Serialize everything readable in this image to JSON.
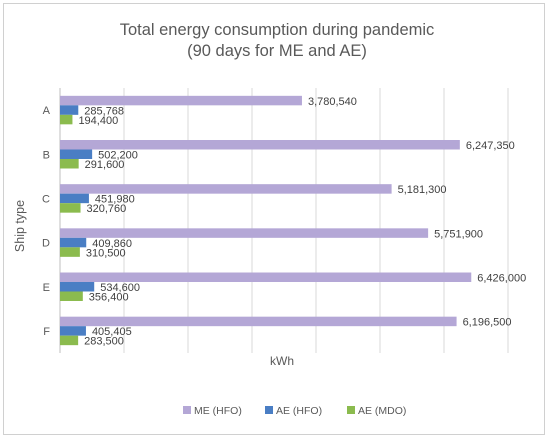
{
  "chart_data": {
    "type": "bar",
    "orientation": "horizontal",
    "title_line1": "Total energy consumption during pandemic",
    "title_line2": "(90 days for ME and AE)",
    "xlabel": "kWh",
    "ylabel": "Ship type",
    "categories": [
      "A",
      "B",
      "C",
      "D",
      "E",
      "F"
    ],
    "series": [
      {
        "name": "ME (HFO)",
        "color": "#b4a7d6",
        "values": [
          3780540,
          6247350,
          5181300,
          5751900,
          6426000,
          6196500
        ],
        "labels": [
          "3,780,540",
          "6,247,350",
          "5,181,300",
          "5,751,900",
          "6,426,000",
          "6,196,500"
        ]
      },
      {
        "name": "AE (HFO)",
        "color": "#4a7ec4",
        "values": [
          285768,
          502200,
          451980,
          409860,
          534600,
          405405
        ],
        "labels": [
          "285,768",
          "502,200",
          "451,980",
          "409,860",
          "534,600",
          "405,405"
        ]
      },
      {
        "name": "AE (MDO)",
        "color": "#8bbb4e",
        "values": [
          194400,
          291600,
          320760,
          310500,
          356400,
          283500
        ],
        "labels": [
          "194,400",
          "291,600",
          "320,760",
          "310,500",
          "356,400",
          "283,500"
        ]
      }
    ],
    "xlim": [
      0,
      7000000
    ],
    "grid": true,
    "legend_position": "bottom"
  }
}
